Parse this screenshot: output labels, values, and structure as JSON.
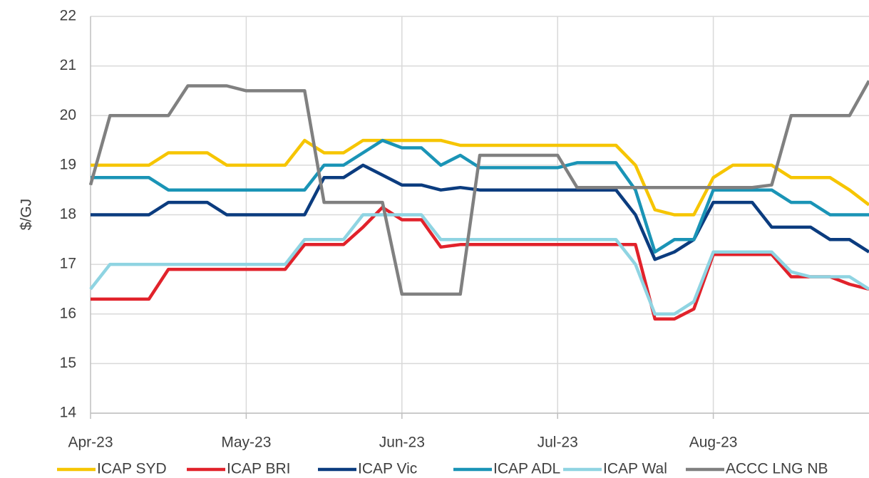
{
  "chart_data": {
    "type": "line",
    "y_label": "$/GJ",
    "categories": [
      "Apr-23",
      null,
      null,
      null,
      null,
      null,
      null,
      null,
      "May-23",
      null,
      null,
      null,
      null,
      null,
      null,
      null,
      "Jun-23",
      null,
      null,
      null,
      null,
      null,
      null,
      null,
      "Jul-23",
      null,
      null,
      null,
      null,
      null,
      null,
      null,
      "Aug-23",
      null,
      null,
      null,
      null,
      null,
      null,
      null,
      null
    ],
    "ylim": [
      14,
      22
    ],
    "yticks": [
      14,
      15,
      16,
      17,
      18,
      19,
      20,
      21,
      22
    ],
    "grid": true,
    "legend": "bottom",
    "series": [
      {
        "name": "ICAP SYD",
        "color": "#f6c500",
        "values": [
          19,
          19,
          19,
          19,
          19.25,
          19.25,
          19.25,
          19,
          19,
          19,
          19,
          19.5,
          19.25,
          19.25,
          19.5,
          19.5,
          19.5,
          19.5,
          19.5,
          19.4,
          19.4,
          19.4,
          19.4,
          19.4,
          19.4,
          19.4,
          19.4,
          19.4,
          19,
          18.1,
          18,
          18,
          18.75,
          19,
          19,
          19,
          18.75,
          18.75,
          18.75,
          18.5,
          18.2
        ]
      },
      {
        "name": "ICAP BRI",
        "color": "#e1222b",
        "values": [
          16.3,
          16.3,
          16.3,
          16.3,
          16.9,
          16.9,
          16.9,
          16.9,
          16.9,
          16.9,
          16.9,
          17.4,
          17.4,
          17.4,
          17.75,
          18.15,
          17.9,
          17.9,
          17.35,
          17.4,
          17.4,
          17.4,
          17.4,
          17.4,
          17.4,
          17.4,
          17.4,
          17.4,
          17.4,
          15.9,
          15.9,
          16.1,
          17.2,
          17.2,
          17.2,
          17.2,
          16.75,
          16.75,
          16.75,
          16.6,
          16.5
        ]
      },
      {
        "name": "ICAP Vic",
        "color": "#0b3c7f",
        "values": [
          18,
          18,
          18,
          18,
          18.25,
          18.25,
          18.25,
          18,
          18,
          18,
          18,
          18,
          18.75,
          18.75,
          19,
          18.8,
          18.6,
          18.6,
          18.5,
          18.55,
          18.5,
          18.5,
          18.5,
          18.5,
          18.5,
          18.5,
          18.5,
          18.5,
          18,
          17.1,
          17.25,
          17.5,
          18.25,
          18.25,
          18.25,
          17.75,
          17.75,
          17.75,
          17.5,
          17.5,
          17.25
        ]
      },
      {
        "name": "ICAP ADL",
        "color": "#1a94b6",
        "values": [
          18.75,
          18.75,
          18.75,
          18.75,
          18.5,
          18.5,
          18.5,
          18.5,
          18.5,
          18.5,
          18.5,
          18.5,
          19,
          19,
          19.25,
          19.5,
          19.35,
          19.35,
          19,
          19.2,
          18.95,
          18.95,
          18.95,
          18.95,
          18.95,
          19.05,
          19.05,
          19.05,
          18.5,
          17.25,
          17.5,
          17.5,
          18.5,
          18.5,
          18.5,
          18.5,
          18.25,
          18.25,
          18,
          18,
          18
        ]
      },
      {
        "name": "ICAP Wal",
        "color": "#8fd4e2",
        "values": [
          16.5,
          17,
          17,
          17,
          17,
          17,
          17,
          17,
          17,
          17,
          17,
          17.5,
          17.5,
          17.5,
          18,
          18,
          18,
          18,
          17.5,
          17.5,
          17.5,
          17.5,
          17.5,
          17.5,
          17.5,
          17.5,
          17.5,
          17.5,
          17,
          16,
          16,
          16.25,
          17.25,
          17.25,
          17.25,
          17.25,
          16.85,
          16.75,
          16.75,
          16.75,
          16.5
        ]
      },
      {
        "name": "ACCC LNG NB",
        "color": "#808080",
        "values": [
          18.6,
          20,
          20,
          20,
          20,
          20.6,
          20.6,
          20.6,
          20.5,
          20.5,
          20.5,
          20.5,
          18.25,
          18.25,
          18.25,
          18.25,
          16.4,
          16.4,
          16.4,
          16.4,
          19.2,
          19.2,
          19.2,
          19.2,
          19.2,
          18.55,
          18.55,
          18.55,
          18.55,
          18.55,
          18.55,
          18.55,
          18.55,
          18.55,
          18.55,
          18.6,
          20,
          20,
          20,
          20,
          20.7
        ]
      }
    ]
  }
}
